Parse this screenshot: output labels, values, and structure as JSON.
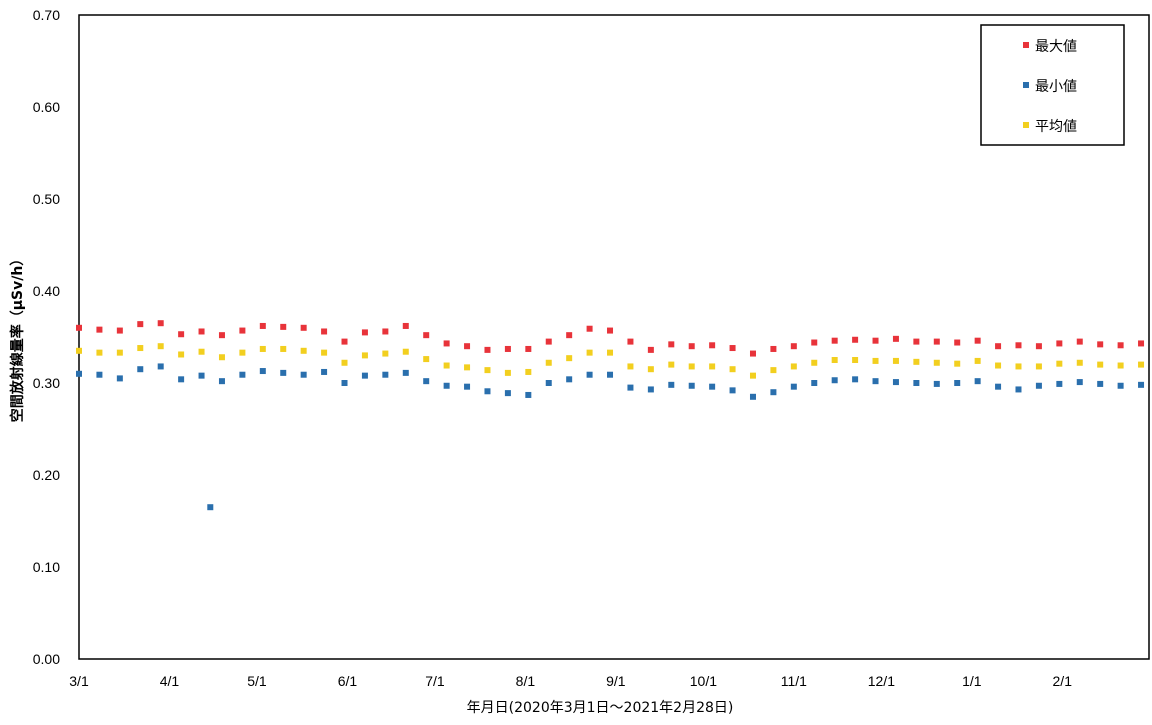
{
  "chart_data": {
    "type": "scatter",
    "title": "",
    "xlabel": "年月日(2020年3月1日～2021年2月28日)",
    "ylabel": "空間放射線量率（μSv/h）",
    "ylim": [
      0,
      0.7
    ],
    "xlim": [
      "2020-03-01",
      "2021-02-28"
    ],
    "y_ticks": [
      "0.00",
      "0.10",
      "0.20",
      "0.30",
      "0.40",
      "0.50",
      "0.60",
      "0.70"
    ],
    "x_ticks": [
      "3/1",
      "4/1",
      "5/1",
      "6/1",
      "7/1",
      "8/1",
      "9/1",
      "10/1",
      "11/1",
      "12/1",
      "1/1",
      "2/1"
    ],
    "grid": "off",
    "legend_position": "top-right",
    "series": [
      {
        "name": "最大値",
        "color": "#e8333a",
        "points": [
          [
            "2020-03-01",
            0.36
          ],
          [
            "2020-03-08",
            0.358
          ],
          [
            "2020-03-15",
            0.357
          ],
          [
            "2020-03-22",
            0.364
          ],
          [
            "2020-03-29",
            0.365
          ],
          [
            "2020-04-05",
            0.353
          ],
          [
            "2020-04-12",
            0.356
          ],
          [
            "2020-04-19",
            0.352
          ],
          [
            "2020-04-26",
            0.357
          ],
          [
            "2020-05-03",
            0.362
          ],
          [
            "2020-05-10",
            0.361
          ],
          [
            "2020-05-17",
            0.36
          ],
          [
            "2020-05-24",
            0.356
          ],
          [
            "2020-05-31",
            0.345
          ],
          [
            "2020-06-07",
            0.355
          ],
          [
            "2020-06-14",
            0.356
          ],
          [
            "2020-06-21",
            0.362
          ],
          [
            "2020-06-28",
            0.352
          ],
          [
            "2020-07-05",
            0.343
          ],
          [
            "2020-07-12",
            0.34
          ],
          [
            "2020-07-19",
            0.336
          ],
          [
            "2020-07-26",
            0.337
          ],
          [
            "2020-08-02",
            0.337
          ],
          [
            "2020-08-09",
            0.345
          ],
          [
            "2020-08-16",
            0.352
          ],
          [
            "2020-08-23",
            0.359
          ],
          [
            "2020-08-30",
            0.357
          ],
          [
            "2020-09-06",
            0.345
          ],
          [
            "2020-09-13",
            0.336
          ],
          [
            "2020-09-20",
            0.342
          ],
          [
            "2020-09-27",
            0.34
          ],
          [
            "2020-10-04",
            0.341
          ],
          [
            "2020-10-11",
            0.338
          ],
          [
            "2020-10-18",
            0.332
          ],
          [
            "2020-10-25",
            0.337
          ],
          [
            "2020-11-01",
            0.34
          ],
          [
            "2020-11-08",
            0.344
          ],
          [
            "2020-11-15",
            0.346
          ],
          [
            "2020-11-22",
            0.347
          ],
          [
            "2020-11-29",
            0.346
          ],
          [
            "2020-12-06",
            0.348
          ],
          [
            "2020-12-13",
            0.345
          ],
          [
            "2020-12-20",
            0.345
          ],
          [
            "2020-12-27",
            0.344
          ],
          [
            "2021-01-03",
            0.346
          ],
          [
            "2021-01-10",
            0.34
          ],
          [
            "2021-01-17",
            0.341
          ],
          [
            "2021-01-24",
            0.34
          ],
          [
            "2021-01-31",
            0.343
          ],
          [
            "2021-02-07",
            0.345
          ],
          [
            "2021-02-14",
            0.342
          ],
          [
            "2021-02-21",
            0.341
          ],
          [
            "2021-02-28",
            0.343
          ]
        ]
      },
      {
        "name": "最小値",
        "color": "#2a6fad",
        "points": [
          [
            "2020-03-01",
            0.31
          ],
          [
            "2020-03-08",
            0.309
          ],
          [
            "2020-03-15",
            0.305
          ],
          [
            "2020-03-22",
            0.315
          ],
          [
            "2020-03-29",
            0.318
          ],
          [
            "2020-04-05",
            0.304
          ],
          [
            "2020-04-12",
            0.308
          ],
          [
            "2020-04-15",
            0.165
          ],
          [
            "2020-04-19",
            0.302
          ],
          [
            "2020-04-26",
            0.309
          ],
          [
            "2020-05-03",
            0.313
          ],
          [
            "2020-05-10",
            0.311
          ],
          [
            "2020-05-17",
            0.309
          ],
          [
            "2020-05-24",
            0.312
          ],
          [
            "2020-05-31",
            0.3
          ],
          [
            "2020-06-07",
            0.308
          ],
          [
            "2020-06-14",
            0.309
          ],
          [
            "2020-06-21",
            0.311
          ],
          [
            "2020-06-28",
            0.302
          ],
          [
            "2020-07-05",
            0.297
          ],
          [
            "2020-07-12",
            0.296
          ],
          [
            "2020-07-19",
            0.291
          ],
          [
            "2020-07-26",
            0.289
          ],
          [
            "2020-08-02",
            0.287
          ],
          [
            "2020-08-09",
            0.3
          ],
          [
            "2020-08-16",
            0.304
          ],
          [
            "2020-08-23",
            0.309
          ],
          [
            "2020-08-30",
            0.309
          ],
          [
            "2020-09-06",
            0.295
          ],
          [
            "2020-09-13",
            0.293
          ],
          [
            "2020-09-20",
            0.298
          ],
          [
            "2020-09-27",
            0.297
          ],
          [
            "2020-10-04",
            0.296
          ],
          [
            "2020-10-11",
            0.292
          ],
          [
            "2020-10-18",
            0.285
          ],
          [
            "2020-10-25",
            0.29
          ],
          [
            "2020-11-01",
            0.296
          ],
          [
            "2020-11-08",
            0.3
          ],
          [
            "2020-11-15",
            0.303
          ],
          [
            "2020-11-22",
            0.304
          ],
          [
            "2020-11-29",
            0.302
          ],
          [
            "2020-12-06",
            0.301
          ],
          [
            "2020-12-13",
            0.3
          ],
          [
            "2020-12-20",
            0.299
          ],
          [
            "2020-12-27",
            0.3
          ],
          [
            "2021-01-03",
            0.302
          ],
          [
            "2021-01-10",
            0.296
          ],
          [
            "2021-01-17",
            0.293
          ],
          [
            "2021-01-24",
            0.297
          ],
          [
            "2021-01-31",
            0.299
          ],
          [
            "2021-02-07",
            0.301
          ],
          [
            "2021-02-14",
            0.299
          ],
          [
            "2021-02-21",
            0.297
          ],
          [
            "2021-02-28",
            0.298
          ]
        ]
      },
      {
        "name": "平均値",
        "color": "#f2cf1f",
        "points": [
          [
            "2020-03-01",
            0.335
          ],
          [
            "2020-03-08",
            0.333
          ],
          [
            "2020-03-15",
            0.333
          ],
          [
            "2020-03-22",
            0.338
          ],
          [
            "2020-03-29",
            0.34
          ],
          [
            "2020-04-05",
            0.331
          ],
          [
            "2020-04-12",
            0.334
          ],
          [
            "2020-04-19",
            0.328
          ],
          [
            "2020-04-26",
            0.333
          ],
          [
            "2020-05-03",
            0.337
          ],
          [
            "2020-05-10",
            0.337
          ],
          [
            "2020-05-17",
            0.335
          ],
          [
            "2020-05-24",
            0.333
          ],
          [
            "2020-05-31",
            0.322
          ],
          [
            "2020-06-07",
            0.33
          ],
          [
            "2020-06-14",
            0.332
          ],
          [
            "2020-06-21",
            0.334
          ],
          [
            "2020-06-28",
            0.326
          ],
          [
            "2020-07-05",
            0.319
          ],
          [
            "2020-07-12",
            0.317
          ],
          [
            "2020-07-19",
            0.314
          ],
          [
            "2020-07-26",
            0.311
          ],
          [
            "2020-08-02",
            0.312
          ],
          [
            "2020-08-09",
            0.322
          ],
          [
            "2020-08-16",
            0.327
          ],
          [
            "2020-08-23",
            0.333
          ],
          [
            "2020-08-30",
            0.333
          ],
          [
            "2020-09-06",
            0.318
          ],
          [
            "2020-09-13",
            0.315
          ],
          [
            "2020-09-20",
            0.32
          ],
          [
            "2020-09-27",
            0.318
          ],
          [
            "2020-10-04",
            0.318
          ],
          [
            "2020-10-11",
            0.315
          ],
          [
            "2020-10-18",
            0.308
          ],
          [
            "2020-10-25",
            0.314
          ],
          [
            "2020-11-01",
            0.318
          ],
          [
            "2020-11-08",
            0.322
          ],
          [
            "2020-11-15",
            0.325
          ],
          [
            "2020-11-22",
            0.325
          ],
          [
            "2020-11-29",
            0.324
          ],
          [
            "2020-12-06",
            0.324
          ],
          [
            "2020-12-13",
            0.323
          ],
          [
            "2020-12-20",
            0.322
          ],
          [
            "2020-12-27",
            0.321
          ],
          [
            "2021-01-03",
            0.324
          ],
          [
            "2021-01-10",
            0.319
          ],
          [
            "2021-01-17",
            0.318
          ],
          [
            "2021-01-24",
            0.318
          ],
          [
            "2021-01-31",
            0.321
          ],
          [
            "2021-02-07",
            0.322
          ],
          [
            "2021-02-14",
            0.32
          ],
          [
            "2021-02-21",
            0.319
          ],
          [
            "2021-02-28",
            0.32
          ]
        ]
      }
    ]
  }
}
